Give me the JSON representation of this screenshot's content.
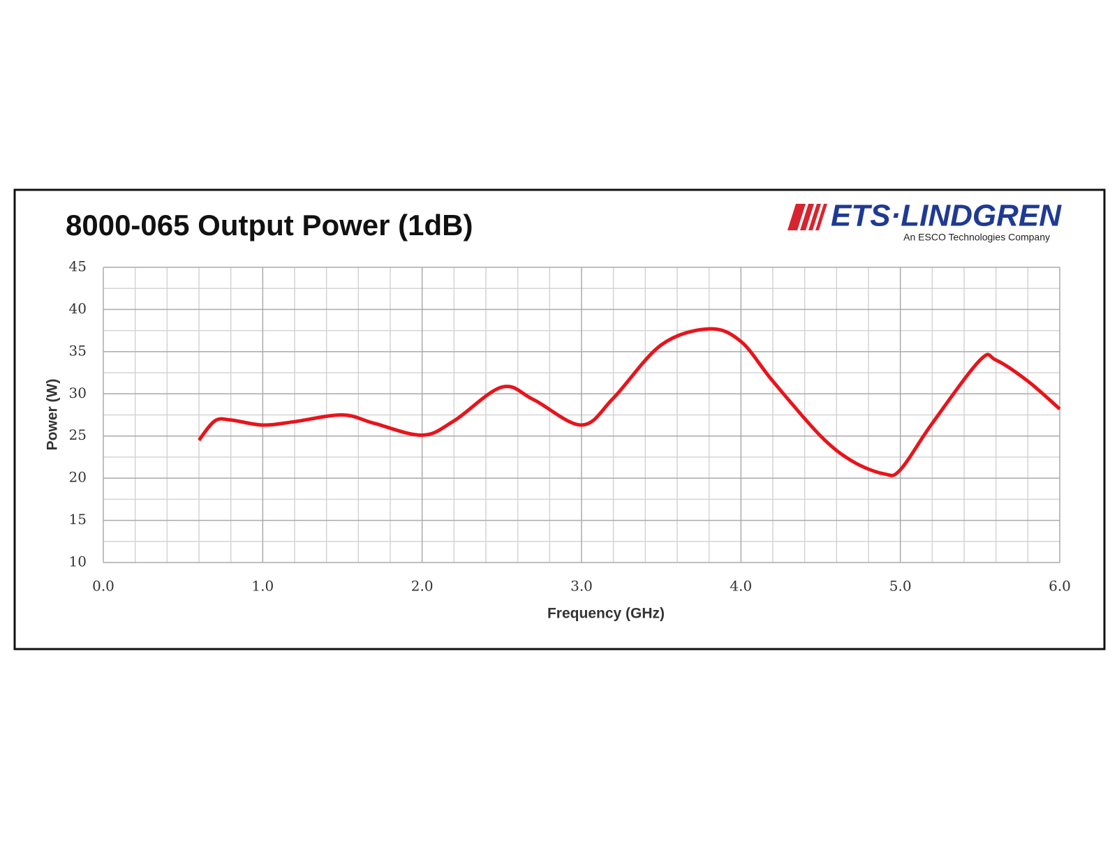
{
  "chart_data": {
    "type": "line",
    "title": "8000-065 Output Power (1dB)",
    "logo": {
      "brand": "ETS·LINDGREN",
      "tagline": "An ESCO Technologies Company"
    },
    "x_label": "Frequency (GHz)",
    "y_label": "Power (W)",
    "x": [
      0.6,
      0.7,
      0.8,
      1.0,
      1.2,
      1.5,
      1.7,
      2.0,
      2.2,
      2.5,
      2.7,
      3.0,
      3.2,
      3.5,
      3.8,
      4.0,
      4.2,
      4.5,
      4.7,
      4.9,
      5.0,
      5.2,
      5.5,
      5.6,
      5.8,
      6.0
    ],
    "series": [
      {
        "name": "Output Power",
        "color": "#e8141b",
        "values": [
          24.5,
          26.8,
          26.9,
          26.3,
          26.7,
          27.5,
          26.5,
          25.1,
          26.8,
          30.8,
          29.3,
          26.3,
          29.5,
          35.8,
          37.7,
          36.2,
          31.5,
          25.0,
          22.0,
          20.5,
          21.0,
          26.5,
          34.0,
          34.0,
          31.5,
          28.2
        ]
      }
    ],
    "xlim": [
      0,
      6
    ],
    "xticks": [
      {
        "value": 0,
        "label": "0.0"
      },
      {
        "value": 1,
        "label": "1.0"
      },
      {
        "value": 2,
        "label": "2.0"
      },
      {
        "value": 3,
        "label": "3.0"
      },
      {
        "value": 4,
        "label": "4.0"
      },
      {
        "value": 5,
        "label": "5.0"
      },
      {
        "value": 6,
        "label": "6.0"
      }
    ],
    "ylim": [
      10,
      45
    ],
    "yticks": [
      10,
      15,
      20,
      25,
      30,
      35,
      40,
      45
    ],
    "grid": true,
    "minor_grid": {
      "x": 5,
      "y": 2
    }
  }
}
